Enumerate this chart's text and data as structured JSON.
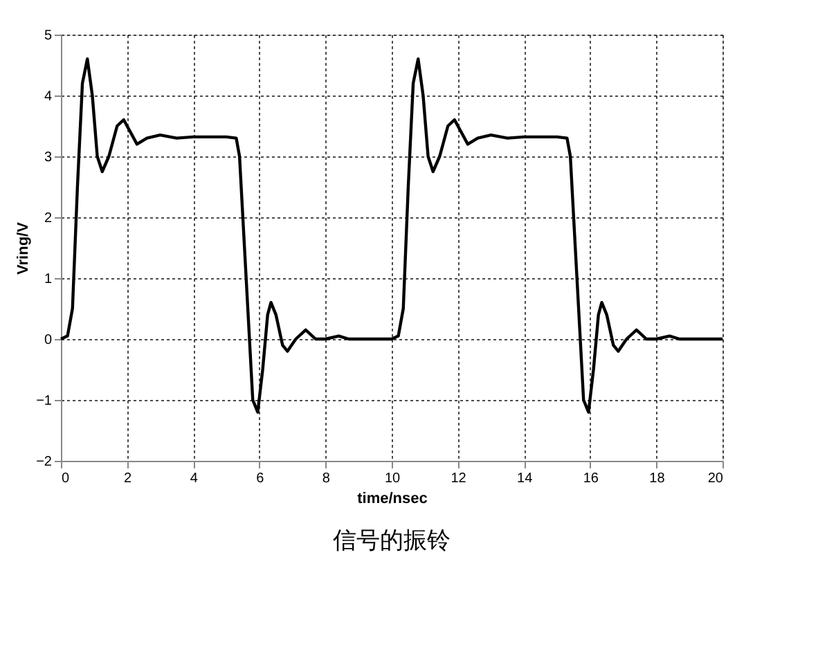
{
  "chart_data": {
    "type": "line",
    "title": "信号的振铃",
    "xlabel": "time/nsec",
    "ylabel": "Vring/V",
    "xlim": [
      0,
      20
    ],
    "xticks": [
      0,
      2,
      4,
      6,
      8,
      10,
      12,
      14,
      16,
      18,
      20
    ],
    "ylim": [
      -2,
      5
    ],
    "yticks": [
      -2,
      -1,
      0,
      1,
      2,
      3,
      4,
      5
    ],
    "grid": true,
    "line_style": "solid",
    "marker": "none",
    "series": [
      {
        "color": "#000000",
        "x": [
          0,
          0.2,
          0.35,
          0.5,
          0.65,
          0.8,
          0.95,
          1.1,
          1.25,
          1.45,
          1.7,
          1.9,
          2.1,
          2.3,
          2.6,
          3.0,
          3.5,
          4.0,
          4.5,
          5.0,
          5.3,
          5.4,
          5.55,
          5.7,
          5.8,
          5.95,
          6.1,
          6.25,
          6.35,
          6.5,
          6.7,
          6.85,
          7.1,
          7.4,
          7.7,
          8.0,
          8.4,
          8.7,
          9.0,
          10.0,
          10.2,
          10.35,
          10.5,
          10.65,
          10.8,
          10.95,
          11.1,
          11.25,
          11.45,
          11.7,
          11.9,
          12.1,
          12.3,
          12.6,
          13.0,
          13.5,
          14.0,
          14.5,
          15.0,
          15.3,
          15.4,
          15.55,
          15.7,
          15.8,
          15.95,
          16.1,
          16.25,
          16.35,
          16.5,
          16.7,
          16.85,
          17.1,
          17.4,
          17.7,
          18.0,
          18.4,
          18.7,
          19.0,
          20.0
        ],
        "values": [
          0,
          0.05,
          0.5,
          2.5,
          4.2,
          4.6,
          4.0,
          3.0,
          2.75,
          3.0,
          3.5,
          3.6,
          3.4,
          3.2,
          3.3,
          3.35,
          3.3,
          3.32,
          3.32,
          3.32,
          3.3,
          3.0,
          1.5,
          0.0,
          -1.0,
          -1.2,
          -0.5,
          0.4,
          0.6,
          0.4,
          -0.1,
          -0.2,
          0.0,
          0.15,
          0.0,
          0.0,
          0.05,
          0.0,
          0.0,
          0.0,
          0.05,
          0.5,
          2.5,
          4.2,
          4.6,
          4.0,
          3.0,
          2.75,
          3.0,
          3.5,
          3.6,
          3.4,
          3.2,
          3.3,
          3.35,
          3.3,
          3.32,
          3.32,
          3.32,
          3.3,
          3.0,
          1.5,
          0.0,
          -1.0,
          -1.2,
          -0.5,
          0.4,
          0.6,
          0.4,
          -0.1,
          -0.2,
          0.0,
          0.15,
          0.0,
          0.0,
          0.05,
          0.0,
          0.0,
          0.0
        ]
      }
    ]
  }
}
